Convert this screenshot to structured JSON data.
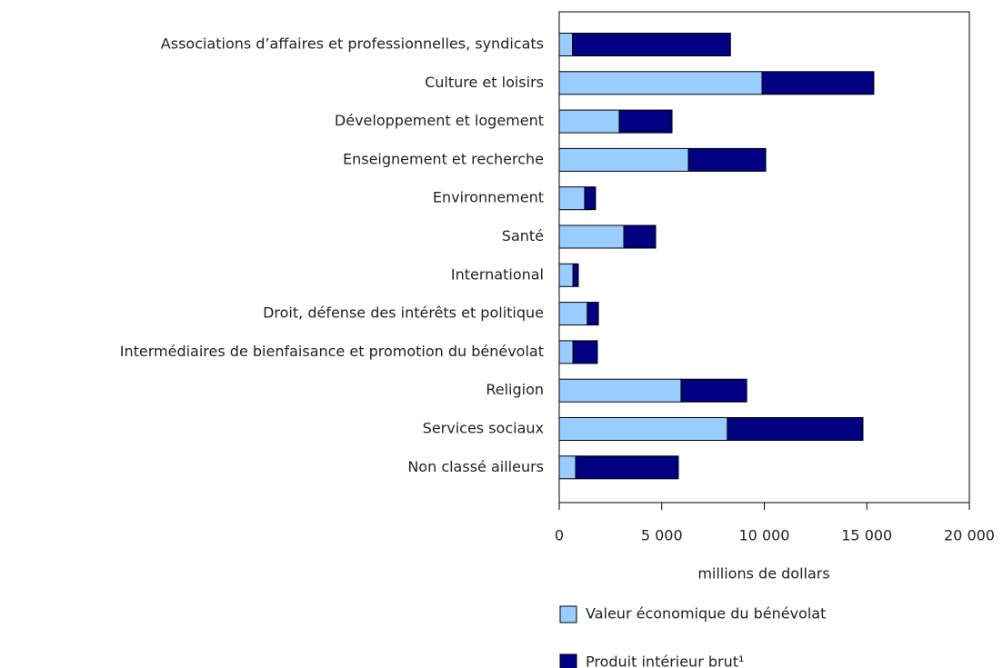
{
  "chart_data": {
    "type": "stacked-barh",
    "categories": [
      "Associations d’affaires et professionnelles, syndicats",
      "Culture et loisirs",
      "Développement et logement",
      "Enseignement et recherche",
      "Environnement",
      "Santé",
      "International",
      "Droit, défense des intérêts et politique",
      "Intermédiaires de bienfaisance et promotion du bénévolat",
      "Religion",
      "Services sociaux",
      "Non classé ailleurs"
    ],
    "series": [
      {
        "name": "Valeur économique du bénévolat",
        "color": "#99ccff",
        "values": [
          650,
          9890,
          2930,
          6300,
          1240,
          3150,
          670,
          1370,
          670,
          5940,
          8200,
          800
        ]
      },
      {
        "name": "Produit intérieur brut¹",
        "color": "#000080",
        "values": [
          7700,
          5450,
          2570,
          3770,
          530,
          1550,
          260,
          540,
          1190,
          3200,
          6610,
          5010
        ]
      }
    ],
    "xlabel": "millions de dollars",
    "xlim": [
      0,
      20000
    ],
    "xticks": [
      0,
      {
        "value": 5000,
        "label": "5 000"
      },
      {
        "value": 10000,
        "label": "10 000"
      },
      {
        "value": 15000,
        "label": "15 000"
      },
      {
        "value": 20000,
        "label": "20 000"
      }
    ]
  }
}
